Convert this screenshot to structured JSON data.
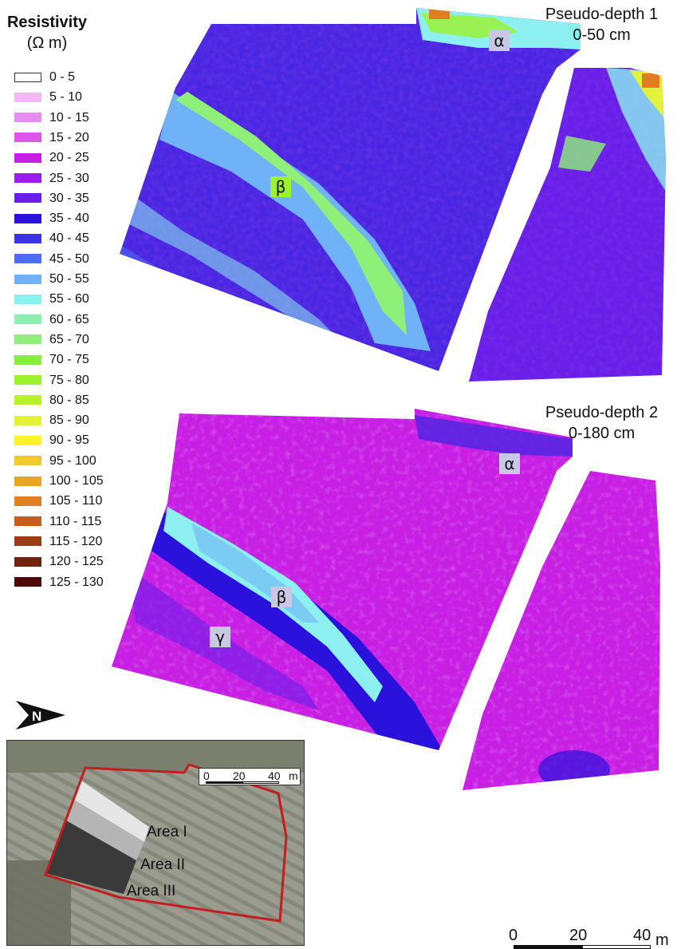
{
  "legend": {
    "title_line1": "Resistivity",
    "title_line2": "(Ω m)",
    "classes": [
      {
        "label": "0 - 5",
        "color": "#ffffff"
      },
      {
        "label": "5 - 10",
        "color": "#f3b8f5"
      },
      {
        "label": "10 - 15",
        "color": "#e88cf0"
      },
      {
        "label": "15 - 20",
        "color": "#de55ea"
      },
      {
        "label": "20 - 25",
        "color": "#c81fe4"
      },
      {
        "label": "25 - 30",
        "color": "#9a1fe6"
      },
      {
        "label": "30 - 35",
        "color": "#6a1ee8"
      },
      {
        "label": "35 - 40",
        "color": "#2a12dc"
      },
      {
        "label": "40 - 45",
        "color": "#3a33e2"
      },
      {
        "label": "45 - 50",
        "color": "#4c6df2"
      },
      {
        "label": "50 - 55",
        "color": "#70b2f7"
      },
      {
        "label": "55 - 60",
        "color": "#8cf0f0"
      },
      {
        "label": "60 - 65",
        "color": "#8df0b0"
      },
      {
        "label": "65 - 70",
        "color": "#8ef078"
      },
      {
        "label": "70 - 75",
        "color": "#86ef3c"
      },
      {
        "label": "75 - 80",
        "color": "#9cf22c"
      },
      {
        "label": "80 - 85",
        "color": "#b8f22c"
      },
      {
        "label": "85 - 90",
        "color": "#e4f33a"
      },
      {
        "label": "90 - 95",
        "color": "#fff22a"
      },
      {
        "label": "95 - 100",
        "color": "#f0c92a"
      },
      {
        "label": "100 - 105",
        "color": "#e9a626"
      },
      {
        "label": "105 - 110",
        "color": "#e07e22"
      },
      {
        "label": "110 - 115",
        "color": "#c45c1c"
      },
      {
        "label": "115 - 120",
        "color": "#9a3c14"
      },
      {
        "label": "120 - 125",
        "color": "#702210"
      },
      {
        "label": "125 - 130",
        "color": "#4e0a08"
      }
    ]
  },
  "maps": [
    {
      "title_line1": "Pseudo-depth 1",
      "title_line2": "0-50 cm",
      "labels": [
        "α",
        "β"
      ]
    },
    {
      "title_line1": "Pseudo-depth 2",
      "title_line2": "0-180 cm",
      "labels": [
        "α",
        "β",
        "γ"
      ]
    }
  ],
  "north": {
    "label": "N"
  },
  "inset": {
    "areas": [
      "Area I",
      "Area II",
      "Area III"
    ],
    "scale_ticks": [
      "0",
      "20",
      "40"
    ],
    "scale_unit": "m"
  },
  "main_scale": {
    "ticks": [
      "0",
      "20",
      "40"
    ],
    "unit": "m"
  },
  "colors": {
    "base_pd2": "#c81fe4",
    "boundary": "#c41d1d"
  }
}
